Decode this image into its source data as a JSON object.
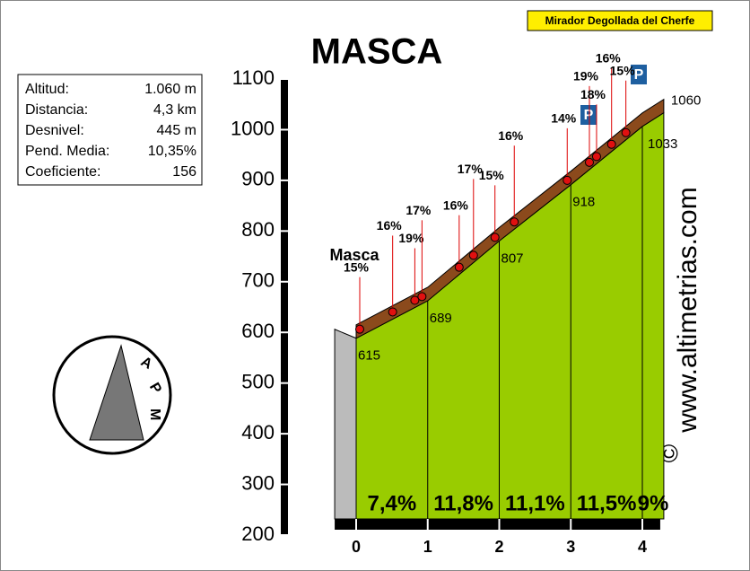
{
  "chart_data": {
    "type": "area",
    "title": "MASCA",
    "x": [
      0,
      1,
      2,
      3,
      4,
      4.3
    ],
    "values": [
      615,
      689,
      807,
      918,
      1033,
      1060
    ],
    "xlim": [
      -0.3,
      4.25
    ],
    "ylim": [
      200,
      1100
    ],
    "xticks": [
      0,
      1,
      2,
      3,
      4
    ],
    "yticks": [
      200,
      300,
      400,
      500,
      600,
      700,
      800,
      900,
      1000,
      1100
    ],
    "color": "#99cc00",
    "band_color": "#8b4a1c",
    "gradients": [
      7.4,
      11.8,
      11.1,
      11.5,
      9
    ],
    "gradient_labels": [
      "7,4%",
      "11,8%",
      "11,1%",
      "11,5%",
      "9%"
    ],
    "markers": {
      "x": [
        0.05,
        0.51,
        0.82,
        0.92,
        1.44,
        1.64,
        1.94,
        2.21,
        2.95,
        3.26,
        3.36,
        3.57,
        3.77
      ],
      "values": [
        15,
        16,
        19,
        17,
        16,
        17,
        15,
        16,
        14,
        19,
        18,
        16,
        15
      ],
      "value_labels": [
        "15%",
        "16%",
        "19%",
        "17%",
        "16%",
        "17%",
        "15%",
        "16%",
        "14%",
        "19%",
        "18%",
        "16%",
        "15%"
      ]
    },
    "info_box": [
      [
        "Altitud:",
        "1.060 m"
      ],
      [
        "Distancia:",
        "4,3 km"
      ],
      [
        "Desnivel:",
        "445 m"
      ],
      [
        "Pend. Media:",
        "10,35%"
      ],
      [
        "Coeficiente:",
        "156"
      ]
    ],
    "place": "Masca",
    "summit": "Mirador Degollada del Cherfe",
    "parking": "P",
    "website": "www.altimetrias.com",
    "copyright": "©",
    "logo": [
      "A",
      "P",
      "M"
    ]
  }
}
